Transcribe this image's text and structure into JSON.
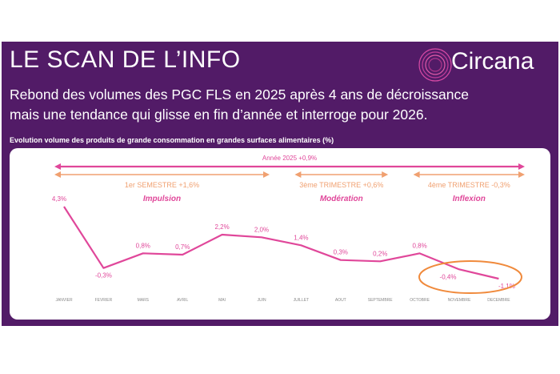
{
  "header": {
    "title": "LE SCAN DE L’INFO",
    "brand": "Circana",
    "subtitle_line1": "Rebond des volumes des PGC FLS en 2025 après 4 ans de décroissance",
    "subtitle_line2": "mais une tendance qui glisse en fin d’année et interroge pour 2026."
  },
  "colors": {
    "banner": "#521b67",
    "line": "#e0479a",
    "pink_arrow": "#e0479a",
    "orange": "#f0a070",
    "highlight_circle": "#f08a3c"
  },
  "chart_data": {
    "type": "line",
    "title": "Evolution volume des produits de grande consommation en grandes surfaces alimentaires (%)",
    "categories": [
      "JANVIER",
      "FEVRIER",
      "MARS",
      "AVRIL",
      "MAI",
      "JUIN",
      "JUILLET",
      "AOUT",
      "SEPTEMBRE",
      "OCTOBRE",
      "NOVEMBRE",
      "DECEMBRE"
    ],
    "series": [
      {
        "values": [
          4.3,
          -0.3,
          0.8,
          0.7,
          2.2,
          2.0,
          1.4,
          0.3,
          0.2,
          0.8,
          -0.4,
          -1.1
        ]
      }
    ],
    "value_labels": [
      "4,3%",
      "-0,3%",
      "0,8%",
      "0,7%",
      "2,2%",
      "2,0%",
      "1,4%",
      "0,3%",
      "0,2%",
      "0,8%",
      "-0,4%",
      "-1,1%"
    ],
    "grid": false,
    "annotations": {
      "year_label": "Année 2025 +0,9%",
      "periods": [
        {
          "label": "1er SEMESTRE +1,6%",
          "sub": "Impulsion",
          "from": 0,
          "to": 5
        },
        {
          "label": "3ème TRIMESTRE +0,6%",
          "sub": "Modération",
          "from": 6,
          "to": 8
        },
        {
          "label": "4ème TRIMESTRE -0,3%",
          "sub": "Inflexion",
          "from": 9,
          "to": 11
        }
      ],
      "circled_months": [
        "NOVEMBRE",
        "DECEMBRE"
      ]
    }
  }
}
